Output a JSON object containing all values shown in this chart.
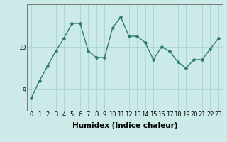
{
  "x": [
    0,
    1,
    2,
    3,
    4,
    5,
    6,
    7,
    8,
    9,
    10,
    11,
    12,
    13,
    14,
    15,
    16,
    17,
    18,
    19,
    20,
    21,
    22,
    23
  ],
  "y": [
    8.8,
    9.2,
    9.55,
    9.9,
    10.2,
    10.55,
    10.55,
    9.9,
    9.75,
    9.75,
    10.45,
    10.7,
    10.25,
    10.25,
    10.1,
    9.7,
    10.0,
    9.9,
    9.65,
    9.5,
    9.7,
    9.7,
    9.95,
    10.2
  ],
  "line_color": "#2e7d6e",
  "marker": "D",
  "marker_size": 2.0,
  "linewidth": 1.0,
  "xlabel": "Humidex (Indice chaleur)",
  "yticks": [
    9,
    10
  ],
  "ylim": [
    8.5,
    11.0
  ],
  "xlim": [
    -0.5,
    23.5
  ],
  "bg_color": "#cceae7",
  "grid_color": "#aad4d0",
  "tick_label_fontsize": 6,
  "xlabel_fontsize": 7.5
}
